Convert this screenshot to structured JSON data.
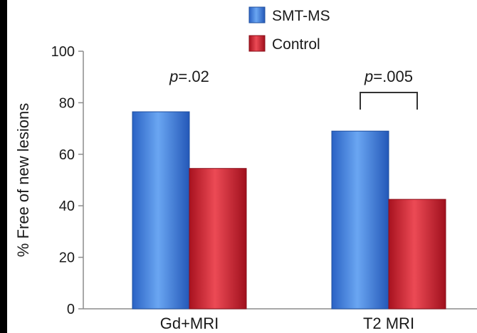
{
  "chart_data": {
    "type": "bar",
    "title": "",
    "xlabel": "",
    "ylabel": "% Free of new lesions",
    "categories": [
      "Gd+MRI",
      "T2 MRI"
    ],
    "series": [
      {
        "name": "SMT-MS",
        "values": [
          76.5,
          69
        ],
        "color": "#3f83e0"
      },
      {
        "name": "Control",
        "values": [
          54.5,
          42.5
        ],
        "color": "#d8283a"
      }
    ],
    "ylim": [
      0,
      100
    ],
    "yticks": [
      0,
      20,
      40,
      60,
      80,
      100
    ],
    "ytick_labels": [
      "0",
      "20",
      "40",
      "60",
      "80",
      "100"
    ],
    "grid": false,
    "legend_position": "top-center",
    "annotations": [
      {
        "category": "Gd+MRI",
        "prefix": "p",
        "text": "=.02",
        "bracket": false
      },
      {
        "category": "T2 MRI",
        "prefix": "p",
        "text": "=.005",
        "bracket": true
      }
    ]
  }
}
